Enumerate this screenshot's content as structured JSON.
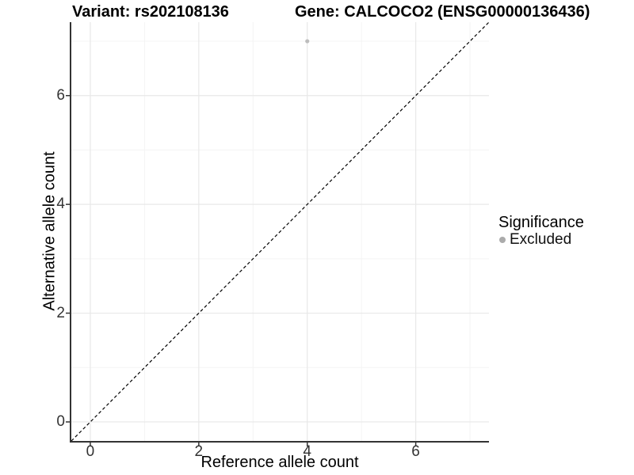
{
  "chart_data": {
    "type": "scatter",
    "title_left": "Variant: rs202108136",
    "title_right": "Gene: CALCOCO2 (ENSG00000136436)",
    "xlabel": "Reference allele count",
    "ylabel": "Alternative allele count",
    "xlim": [
      -0.35,
      7.35
    ],
    "ylim": [
      -0.35,
      7.35
    ],
    "x_ticks": [
      0,
      2,
      4,
      6
    ],
    "y_ticks": [
      0,
      2,
      4,
      6
    ],
    "x_minor_ticks": [
      1,
      3,
      5,
      7
    ],
    "y_minor_ticks": [
      1,
      3,
      5,
      7
    ],
    "grid": true,
    "series": [
      {
        "name": "Excluded",
        "color": "#bdbdbd",
        "points": [
          {
            "x": 4,
            "y": 7
          }
        ]
      }
    ],
    "reference_line": {
      "type": "identity",
      "style": "dashed",
      "from": [
        -0.35,
        -0.35
      ],
      "to": [
        7.35,
        7.35
      ],
      "color": "#000000"
    },
    "legend": {
      "title": "Significance",
      "position": "right",
      "entries": [
        {
          "label": "Excluded",
          "color": "#ababab"
        }
      ]
    },
    "colors": {
      "axis": "#333333",
      "tick": "#333333",
      "grid_major": "#e8e8e8",
      "grid_minor": "#f4f4f4",
      "panel_background": "#ffffff"
    }
  }
}
